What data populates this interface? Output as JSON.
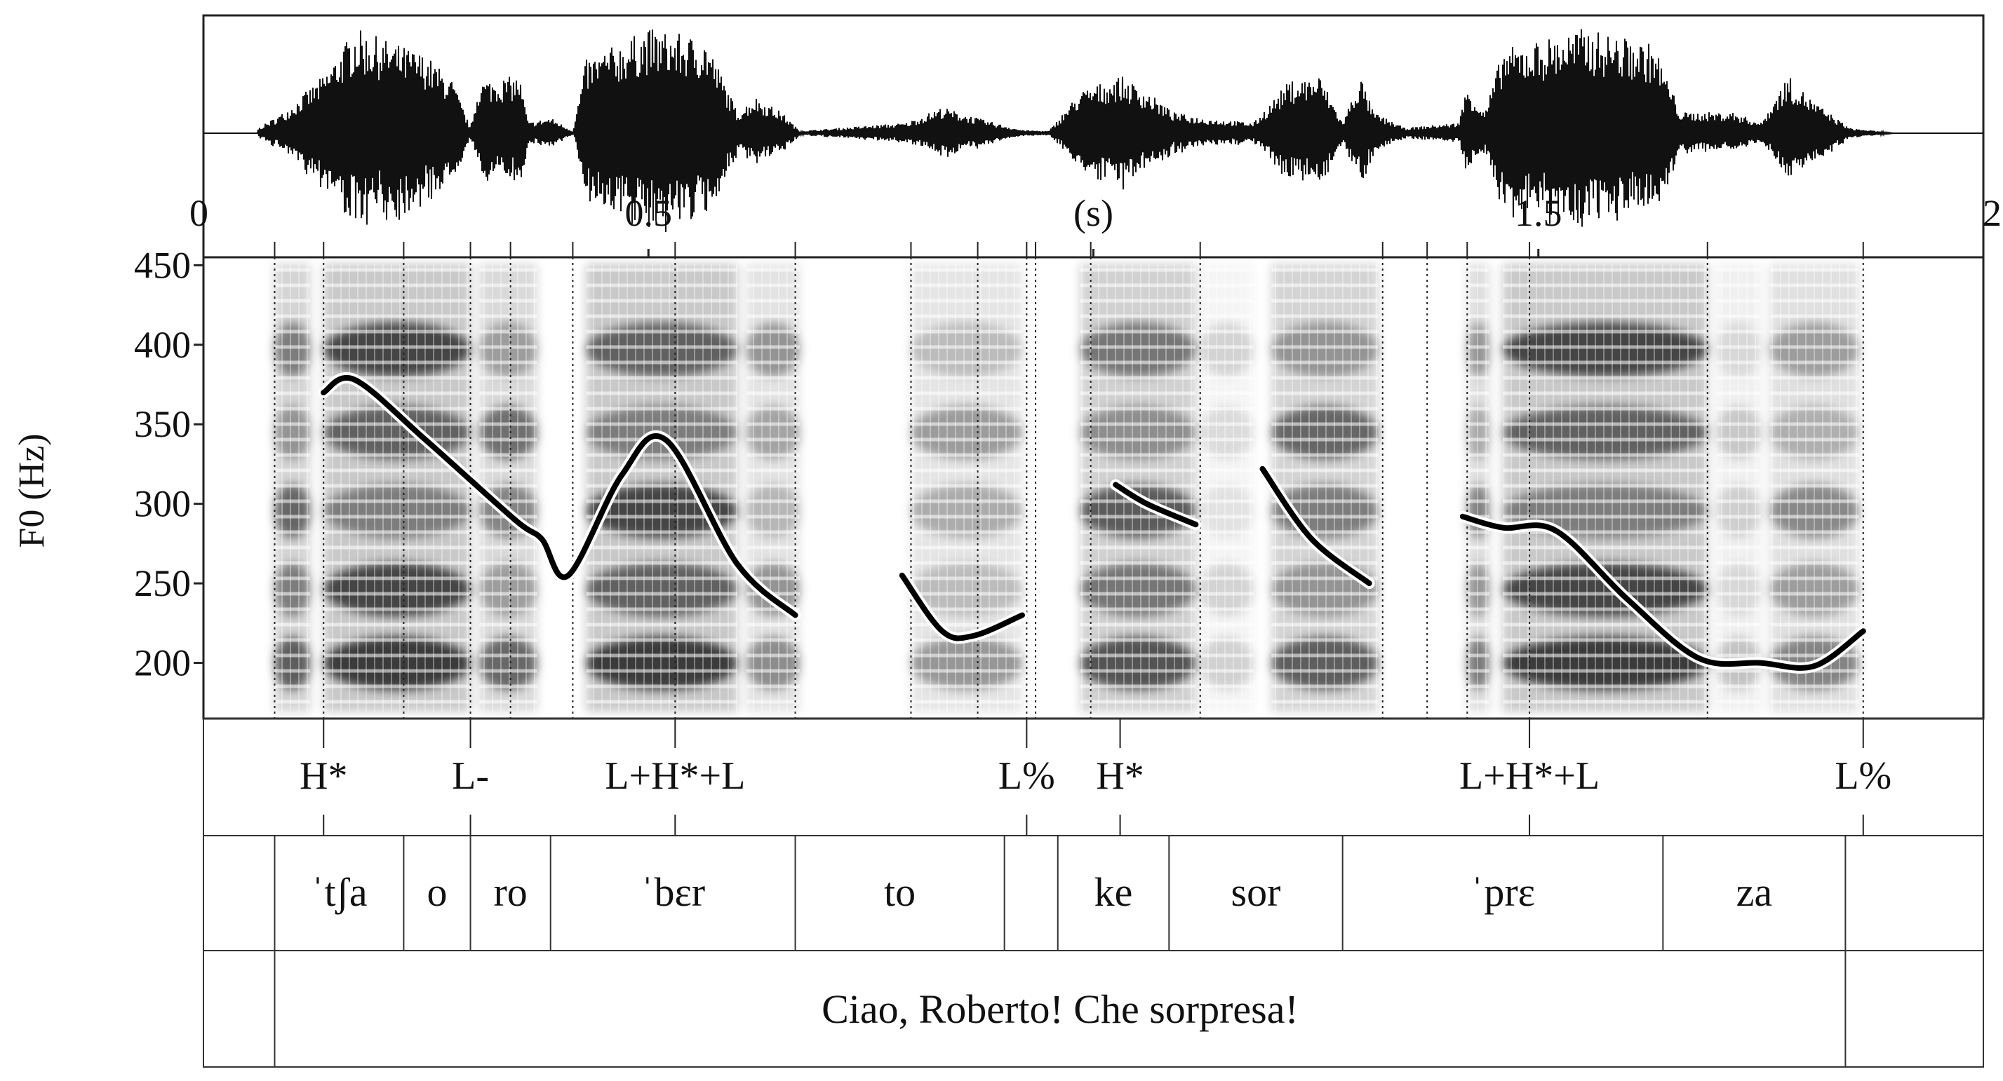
{
  "chart_data": {
    "type": "line",
    "time_axis": {
      "range": [
        0,
        2
      ],
      "ticks": [
        0,
        0.5,
        1,
        1.5,
        2
      ],
      "tick_labels": [
        "0",
        "0.5",
        "(s)",
        "1.5",
        "2"
      ]
    },
    "f0_axis": {
      "label": "F0 (Hz)",
      "range": [
        165,
        455
      ],
      "ticks": [
        200,
        250,
        300,
        350,
        400,
        450
      ],
      "tick_labels": [
        "200",
        "250",
        "300",
        "350",
        "400",
        "450"
      ]
    },
    "boundaries": [
      0.08,
      0.135,
      0.225,
      0.3,
      0.345,
      0.415,
      0.53,
      0.665,
      0.795,
      0.87,
      0.925,
      0.935,
      0.997,
      1.12,
      1.325,
      1.375,
      1.42,
      1.49,
      1.69,
      1.865
    ],
    "f0_segments": [
      {
        "t": [
          0.135,
          0.17,
          0.25,
          0.35,
          0.38,
          0.41,
          0.47,
          0.52,
          0.6,
          0.665
        ],
        "f0": [
          370,
          378,
          340,
          290,
          278,
          255,
          318,
          340,
          262,
          230
        ]
      },
      {
        "t": [
          0.785,
          0.83,
          0.865,
          0.92
        ],
        "f0": [
          255,
          220,
          217,
          230
        ]
      },
      {
        "t": [
          1.025,
          1.06,
          1.115
        ],
        "f0": [
          312,
          300,
          287
        ]
      },
      {
        "t": [
          1.19,
          1.245,
          1.31
        ],
        "f0": [
          322,
          278,
          250
        ]
      },
      {
        "t": [
          1.415,
          1.46,
          1.52,
          1.6,
          1.68,
          1.75,
          1.81,
          1.865
        ],
        "f0": [
          292,
          285,
          283,
          240,
          203,
          200,
          198,
          220
        ]
      }
    ],
    "tones": [
      {
        "label": "H*",
        "t": 0.135
      },
      {
        "label": "L-",
        "t": 0.3
      },
      {
        "label": "L+H*+L",
        "t": 0.53
      },
      {
        "label": "L%",
        "t": 0.925
      },
      {
        "label": "H*",
        "t": 1.03
      },
      {
        "label": "L+H*+L",
        "t": 1.49
      },
      {
        "label": "L%",
        "t": 1.865
      }
    ],
    "syllables": [
      {
        "label": "ˈtʃa",
        "start": 0.08,
        "end": 0.225
      },
      {
        "label": "o",
        "start": 0.225,
        "end": 0.3
      },
      {
        "label": "ro",
        "start": 0.3,
        "end": 0.39
      },
      {
        "label": "ˈbɛr",
        "start": 0.39,
        "end": 0.665
      },
      {
        "label": "to",
        "start": 0.665,
        "end": 0.9
      },
      {
        "label": "ke",
        "start": 0.96,
        "end": 1.085
      },
      {
        "label": "sor",
        "start": 1.085,
        "end": 1.28
      },
      {
        "label": "ˈprɛ",
        "start": 1.28,
        "end": 1.64
      },
      {
        "label": "za",
        "start": 1.64,
        "end": 1.845
      }
    ],
    "syllable_tier_boundaries": [
      0.08,
      0.225,
      0.3,
      0.39,
      0.665,
      0.9,
      0.96,
      1.085,
      1.28,
      1.64,
      1.845
    ],
    "sentence": {
      "label": "Ciao, Roberto! Che sorpresa!",
      "start": 0.08,
      "end": 1.845
    }
  }
}
